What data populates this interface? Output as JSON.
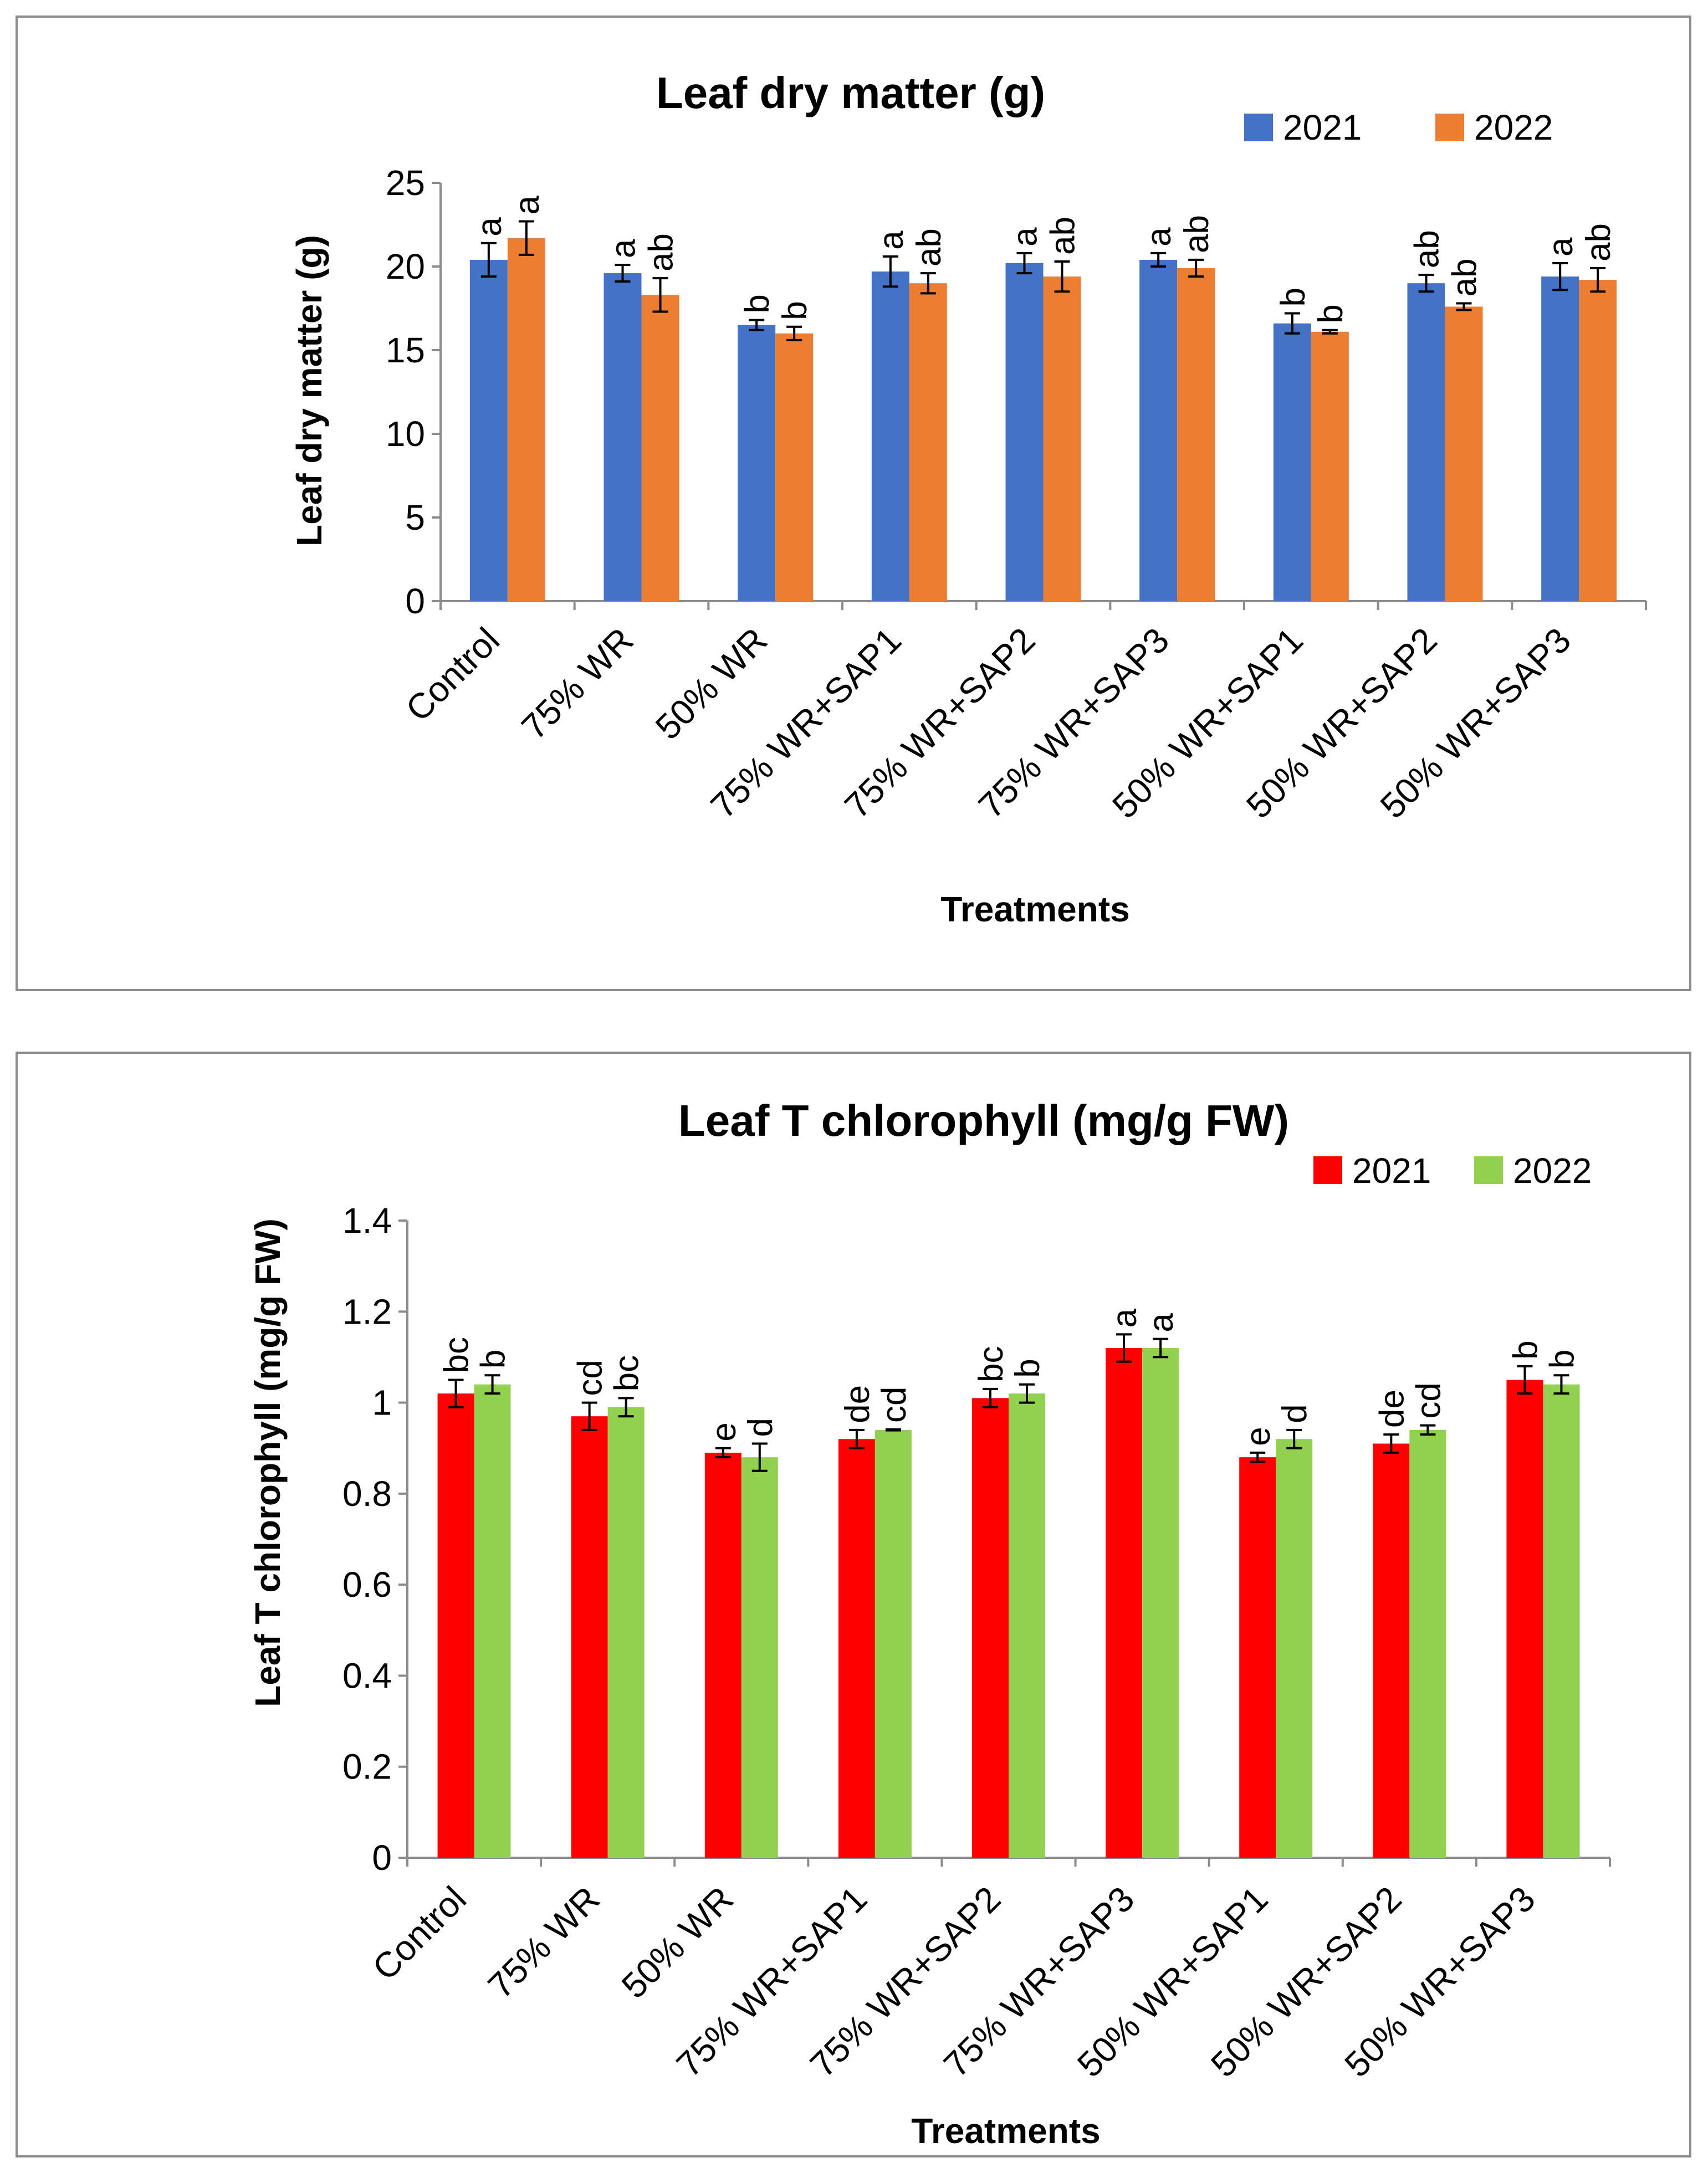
{
  "chart_data": [
    {
      "type": "bar",
      "title": "Leaf dry matter (g)",
      "xlabel": "Treatments",
      "ylabel": "Leaf dry matter (g)",
      "ylim": [
        0,
        25
      ],
      "yticks": [
        0,
        5,
        10,
        15,
        20,
        25
      ],
      "grid": false,
      "legend_position": "top-right",
      "categories": [
        "Control",
        "75% WR",
        "50% WR",
        "75% WR+SAP1",
        "75% WR+SAP2",
        "75% WR+SAP3",
        "50% WR+SAP1",
        "50% WR+SAP2",
        "50% WR+SAP3"
      ],
      "series": [
        {
          "name": "2021",
          "color": "#4472C4",
          "values": [
            20.4,
            19.6,
            16.5,
            19.7,
            20.2,
            20.4,
            16.6,
            19.0,
            19.4
          ],
          "errors": [
            1.0,
            0.5,
            0.3,
            0.9,
            0.6,
            0.4,
            0.6,
            0.5,
            0.8
          ],
          "letters": [
            "a",
            "a",
            "b",
            "a",
            "a",
            "a",
            "b",
            "ab",
            "a"
          ]
        },
        {
          "name": "2022",
          "color": "#ED7D31",
          "values": [
            21.7,
            18.3,
            16.0,
            19.0,
            19.4,
            19.9,
            16.1,
            17.6,
            19.2
          ],
          "errors": [
            1.0,
            1.0,
            0.4,
            0.6,
            0.9,
            0.5,
            0.1,
            0.2,
            0.7
          ],
          "letters": [
            "a",
            "ab",
            "b",
            "ab",
            "ab",
            "ab",
            "b",
            "ab",
            "ab"
          ]
        }
      ]
    },
    {
      "type": "bar",
      "title": "Leaf T chlorophyll (mg/g FW)",
      "xlabel": "Treatments",
      "ylabel": "Leaf T chlorophyll (mg/g FW)",
      "ylim": [
        0,
        1.4
      ],
      "yticks": [
        0,
        0.2,
        0.4,
        0.6,
        0.8,
        1,
        1.2,
        1.4
      ],
      "grid": false,
      "legend_position": "top-right",
      "categories": [
        "Control",
        "75% WR",
        "50% WR",
        "75% WR+SAP1",
        "75% WR+SAP2",
        "75% WR+SAP3",
        "50% WR+SAP1",
        "50% WR+SAP2",
        "50% WR+SAP3"
      ],
      "series": [
        {
          "name": "2021",
          "color": "#FF0000",
          "values": [
            1.02,
            0.97,
            0.89,
            0.92,
            1.01,
            1.12,
            0.88,
            0.91,
            1.05
          ],
          "errors": [
            0.03,
            0.03,
            0.01,
            0.02,
            0.02,
            0.03,
            0.01,
            0.02,
            0.03
          ],
          "letters": [
            "bc",
            "cd",
            "e",
            "de",
            "bc",
            "a",
            "e",
            "de",
            "b"
          ]
        },
        {
          "name": "2022",
          "color": "#92D050",
          "values": [
            1.04,
            0.99,
            0.88,
            0.94,
            1.02,
            1.12,
            0.92,
            0.94,
            1.04
          ],
          "errors": [
            0.02,
            0.02,
            0.03,
            0.001,
            0.02,
            0.02,
            0.02,
            0.01,
            0.02
          ],
          "letters": [
            "b",
            "bc",
            "d",
            "cd",
            "b",
            "a",
            "d",
            "cd",
            "b"
          ]
        }
      ]
    }
  ]
}
